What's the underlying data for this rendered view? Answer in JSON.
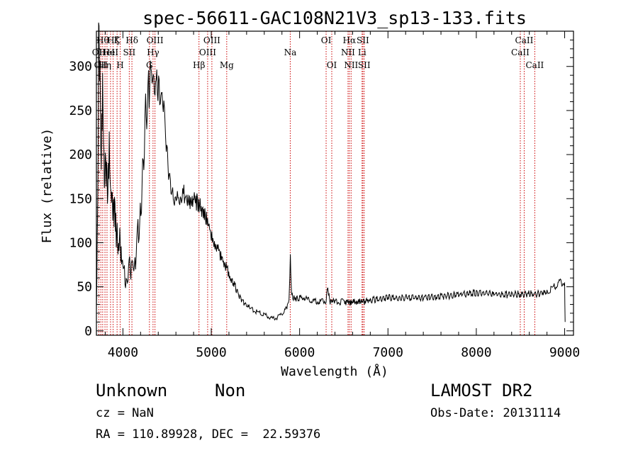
{
  "chart_data": {
    "type": "line",
    "title": "spec-56611-GAC108N21V3_sp13-133.fits",
    "xlabel": "Wavelength (Å)",
    "ylabel": "Flux (relative)",
    "xlim": [
      3700,
      9100
    ],
    "ylim": [
      -5,
      340
    ],
    "x_ticks": [
      "4000",
      "5000",
      "6000",
      "7000",
      "8000",
      "9000"
    ],
    "x_tick_values": [
      4000,
      5000,
      6000,
      7000,
      8000,
      9000
    ],
    "y_ticks": [
      "0",
      "50",
      "100",
      "150",
      "200",
      "250",
      "300"
    ],
    "y_tick_values": [
      0,
      50,
      100,
      150,
      200,
      250,
      300
    ],
    "grid": false,
    "line_color": "#000000",
    "marker_color": "#cc0000",
    "series": [
      {
        "x": [
          3700,
          3715,
          3725,
          3735,
          3745,
          3755,
          3765,
          3780,
          3790,
          3800,
          3815,
          3830,
          3845,
          3860,
          3875,
          3890,
          3905,
          3920,
          3935,
          3950,
          3965,
          3980,
          3995,
          4010,
          4030,
          4050,
          4070,
          4090,
          4110,
          4130,
          4150,
          4170,
          4190,
          4210,
          4230,
          4250,
          4270,
          4290,
          4310,
          4330,
          4350,
          4370,
          4390,
          4410,
          4430,
          4450,
          4470,
          4490,
          4510,
          4530,
          4550,
          4570,
          4590,
          4610,
          4630,
          4650,
          4670,
          4690,
          4710,
          4730,
          4760,
          4790,
          4820,
          4850,
          4880,
          4910,
          4940,
          4970,
          5000,
          5030,
          5060,
          5090,
          5120,
          5150,
          5180,
          5210,
          5250,
          5290,
          5330,
          5370,
          5410,
          5450,
          5500,
          5550,
          5600,
          5650,
          5700,
          5750,
          5800,
          5850,
          5880,
          5895,
          5910,
          5930,
          5960,
          6000,
          6050,
          6100,
          6150,
          6200,
          6250,
          6300,
          6320,
          6340,
          6400,
          6450,
          6500,
          6560,
          6620,
          6680,
          6740,
          6800,
          6900,
          7000,
          7100,
          7200,
          7300,
          7400,
          7500,
          7600,
          7700,
          7800,
          7900,
          8000,
          8100,
          8200,
          8300,
          8400,
          8500,
          8600,
          8700,
          8800,
          8850,
          8900,
          8950,
          9000,
          9005
        ],
        "y": [
          20,
          150,
          310,
          290,
          240,
          180,
          270,
          220,
          160,
          200,
          175,
          150,
          195,
          160,
          140,
          130,
          145,
          115,
          110,
          95,
          105,
          90,
          80,
          70,
          60,
          55,
          75,
          65,
          85,
          75,
          90,
          110,
          120,
          150,
          180,
          220,
          260,
          285,
          295,
          290,
          285,
          280,
          278,
          272,
          270,
          265,
          240,
          215,
          190,
          170,
          160,
          155,
          150,
          150,
          145,
          148,
          150,
          155,
          150,
          150,
          148,
          150,
          147,
          145,
          140,
          135,
          130,
          120,
          110,
          100,
          95,
          90,
          82,
          75,
          70,
          62,
          55,
          45,
          38,
          32,
          28,
          25,
          22,
          20,
          18,
          16,
          14,
          15,
          20,
          25,
          35,
          85,
          40,
          38,
          36,
          37,
          38,
          35,
          33,
          34,
          33,
          34,
          50,
          32,
          34,
          33,
          33,
          32,
          33,
          34,
          33,
          35,
          36,
          38,
          37,
          38,
          37,
          38,
          38,
          39,
          40,
          41,
          42,
          43,
          42,
          42,
          41,
          41,
          42,
          42,
          42,
          44,
          48,
          52,
          55,
          55,
          10
        ],
        "name": ""
      }
    ],
    "lines": [
      {
        "x": 3727,
        "labels": [
          "OII"
        ],
        "tier": 2
      },
      {
        "x": 3750,
        "labels": [
          "OII"
        ],
        "tier": 3
      },
      {
        "x": 3771,
        "labels": [
          "Hθ"
        ],
        "tier": 1
      },
      {
        "x": 3797,
        "labels": [
          "Hη"
        ],
        "tier": 3
      },
      {
        "x": 3820,
        "labels": [
          "HeI"
        ],
        "tier": 2
      },
      {
        "x": 3860,
        "labels": [
          "HeI"
        ],
        "tier": 2
      },
      {
        "x": 3889,
        "labels": [
          "Hζ"
        ],
        "tier": 1
      },
      {
        "x": 3934,
        "labels": [
          "K"
        ],
        "tier": 1
      },
      {
        "x": 3969,
        "labels": [
          "H"
        ],
        "tier": 3
      },
      {
        "x": 4072,
        "labels": [
          "SII"
        ],
        "tier": 2
      },
      {
        "x": 4102,
        "labels": [
          "Hδ"
        ],
        "tier": 1
      },
      {
        "x": 4300,
        "labels": [
          "G"
        ],
        "tier": 3
      },
      {
        "x": 4341,
        "labels": [
          "Hγ"
        ],
        "tier": 2
      },
      {
        "x": 4363,
        "labels": [
          "OIII"
        ],
        "tier": 1
      },
      {
        "x": 4861,
        "labels": [
          "Hβ"
        ],
        "tier": 3
      },
      {
        "x": 4959,
        "labels": [
          "OIII"
        ],
        "tier": 2
      },
      {
        "x": 5007,
        "labels": [
          "OIII"
        ],
        "tier": 1
      },
      {
        "x": 5175,
        "labels": [
          "Mg"
        ],
        "tier": 3
      },
      {
        "x": 5894,
        "labels": [
          "Na"
        ],
        "tier": 2
      },
      {
        "x": 6300,
        "labels": [
          "OI"
        ],
        "tier": 1
      },
      {
        "x": 6364,
        "labels": [
          "OI"
        ],
        "tier": 3
      },
      {
        "x": 6548,
        "labels": [
          "NII"
        ],
        "tier": 2
      },
      {
        "x": 6563,
        "labels": [
          "Hα"
        ],
        "tier": 1
      },
      {
        "x": 6583,
        "labels": [
          "NII"
        ],
        "tier": 3
      },
      {
        "x": 6707,
        "labels": [
          "Li"
        ],
        "tier": 2
      },
      {
        "x": 6716,
        "labels": [
          "SII"
        ],
        "tier": 1
      },
      {
        "x": 6731,
        "labels": [
          "SII"
        ],
        "tier": 3
      },
      {
        "x": 8498,
        "labels": [
          "CaII"
        ],
        "tier": 2
      },
      {
        "x": 8542,
        "labels": [
          "CaII"
        ],
        "tier": 1
      },
      {
        "x": 8662,
        "labels": [
          "CaII"
        ],
        "tier": 3
      }
    ]
  },
  "info": {
    "object_class": "Unknown",
    "object_subclass": "Non",
    "survey": "LAMOST DR2",
    "redshift": "cz = NaN",
    "obs_date": "Obs-Date: 20131114",
    "coords": "RA = 110.89928, DEC =  22.59376"
  }
}
